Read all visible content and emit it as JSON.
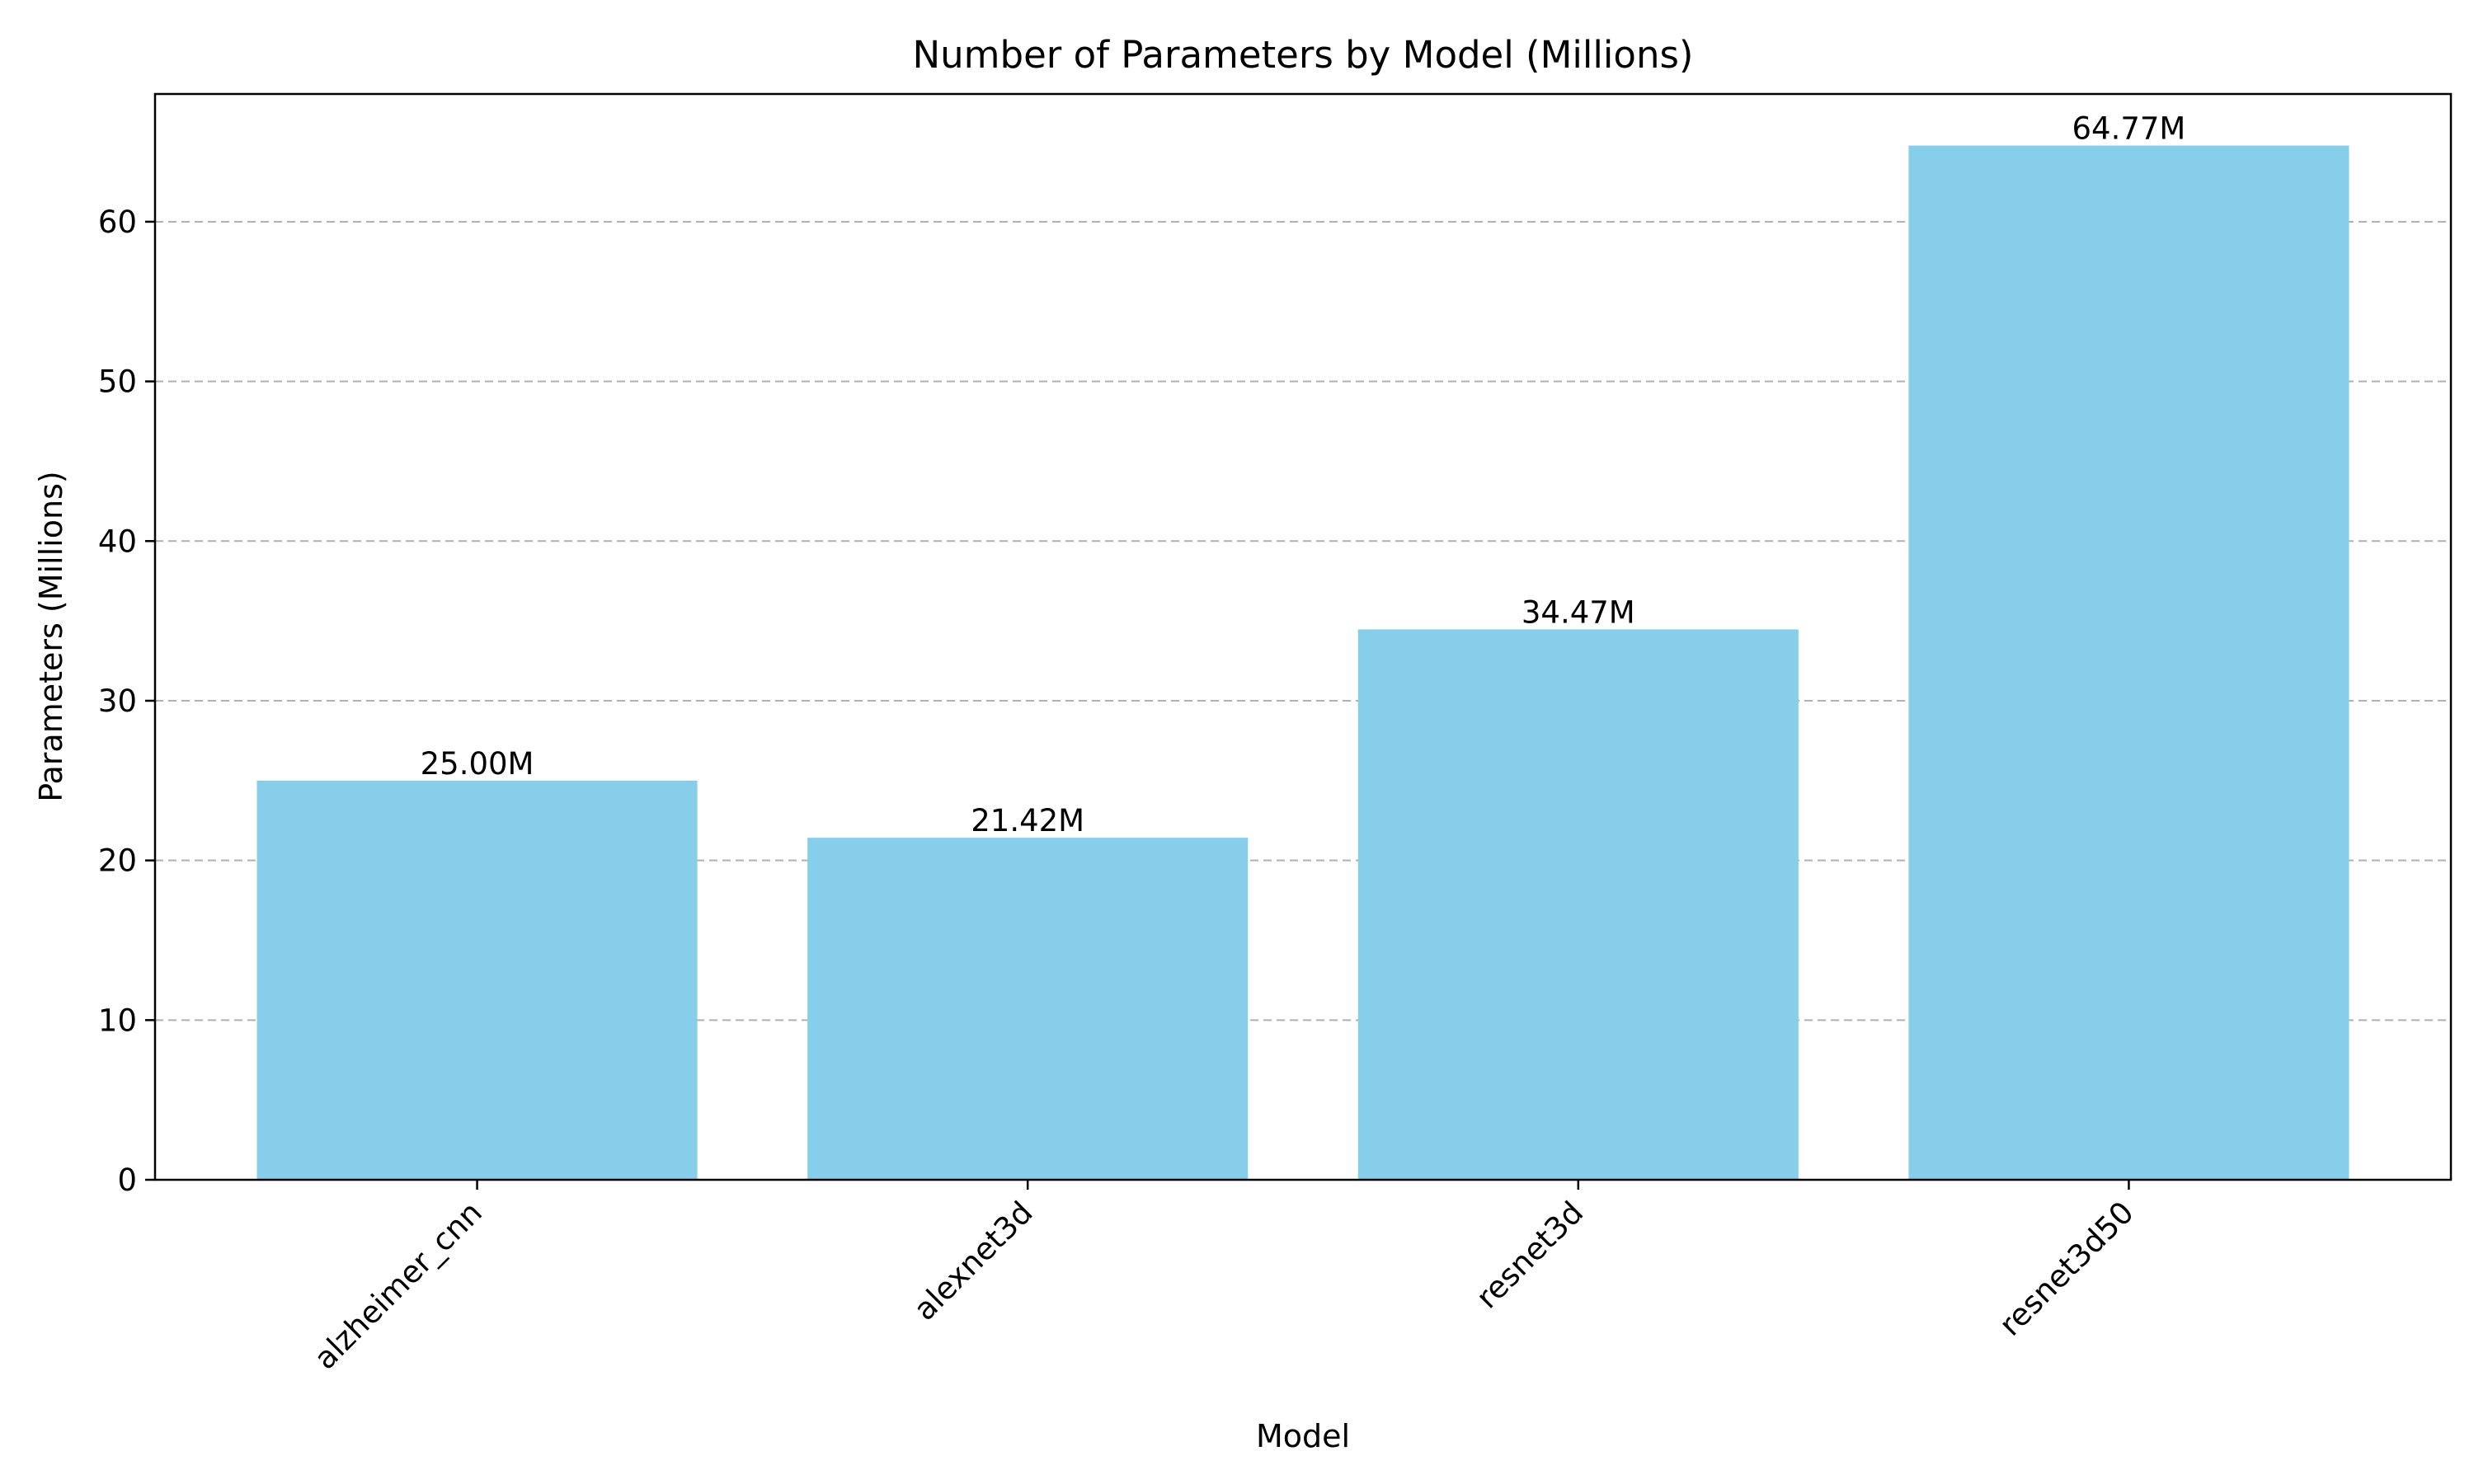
{
  "chart_data": {
    "type": "bar",
    "title": "Number of Parameters by Model (Millions)",
    "xlabel": "Model",
    "ylabel": "Parameters (Millions)",
    "categories": [
      "alzheimer_cnn",
      "alexnet3d",
      "resnet3d",
      "resnet3d50"
    ],
    "values": [
      25.0,
      21.42,
      34.47,
      64.77
    ],
    "data_labels": [
      "25.00M",
      "21.42M",
      "34.47M",
      "64.77M"
    ],
    "ylim": [
      0,
      68
    ],
    "yticks": [
      0,
      10,
      20,
      30,
      40,
      50,
      60
    ],
    "grid": "y-dashed",
    "bar_color": "#87ceeb",
    "grid_color": "#b0b0b0"
  }
}
